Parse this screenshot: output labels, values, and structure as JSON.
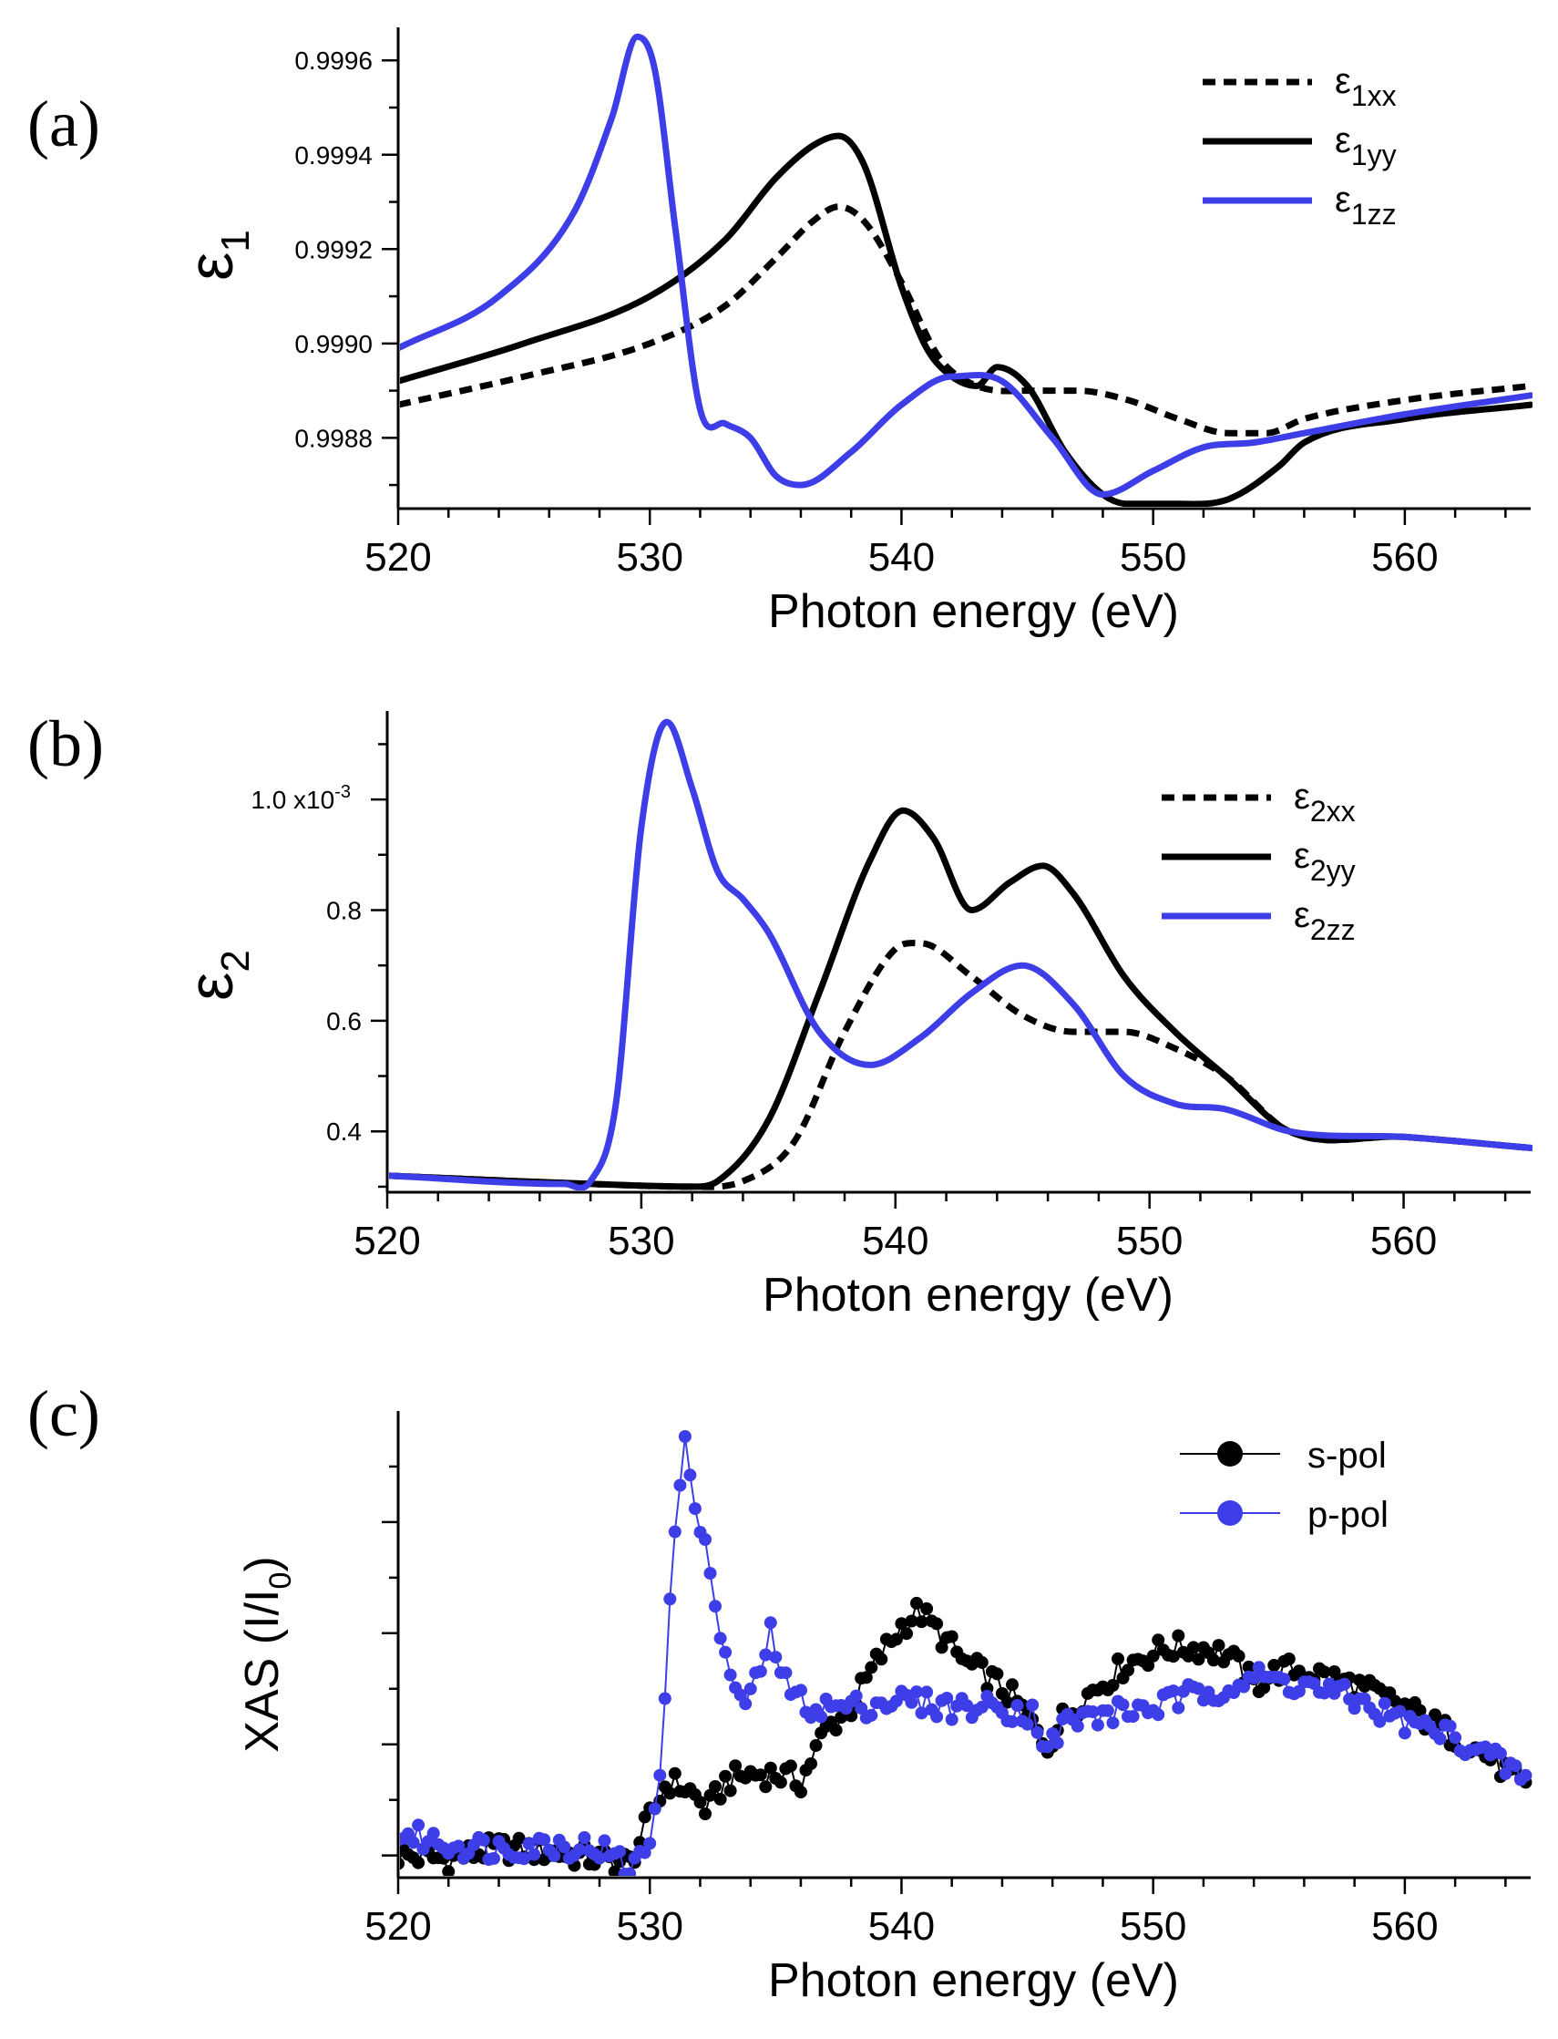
{
  "chart_data": [
    {
      "panel_label": "(a)",
      "type": "line",
      "xlabel": "Photon energy (eV)",
      "ylabel": {
        "base": "ε",
        "sub": "1"
      },
      "xlim": [
        520,
        565
      ],
      "ylim": [
        0.99865,
        0.99967
      ],
      "xticks": [
        520,
        530,
        540,
        550,
        560
      ],
      "xtick_labels": [
        "520",
        "530",
        "540",
        "550",
        "560"
      ],
      "yticks": [
        0.9988,
        0.999,
        0.9992,
        0.9994,
        0.9996
      ],
      "ytick_labels": [
        "0.9988",
        "0.9990",
        "0.9992",
        "0.9994",
        "0.9996"
      ],
      "legend_position": "top-right",
      "series": [
        {
          "name": "ε1xx",
          "label_base": "ε",
          "label_sub": "1xx",
          "color": "#000000",
          "dash": "dotted",
          "x": [
            520,
            525,
            530,
            533,
            535,
            536.5,
            537.5,
            538.5,
            540,
            541.5,
            543,
            545,
            547,
            549,
            551,
            553,
            554.5,
            556,
            560,
            565
          ],
          "y": [
            0.99887,
            0.99893,
            0.999,
            0.99908,
            0.99918,
            0.99926,
            0.99929,
            0.99926,
            0.99913,
            0.99897,
            0.99891,
            0.9989,
            0.9989,
            0.99888,
            0.99884,
            0.99881,
            0.99881,
            0.99884,
            0.99888,
            0.99891
          ]
        },
        {
          "name": "ε1yy",
          "label_base": "ε",
          "label_sub": "1yy",
          "color": "#000000",
          "dash": "solid",
          "x": [
            520,
            525,
            530,
            533,
            535,
            536.5,
            537.5,
            538.5,
            540,
            541,
            542,
            543,
            543.8,
            545,
            546.5,
            548,
            549,
            551,
            553,
            555,
            556,
            560,
            565
          ],
          "y": [
            0.99892,
            0.999,
            0.9991,
            0.99922,
            0.99935,
            0.99942,
            0.99944,
            0.99938,
            0.99912,
            0.99899,
            0.99893,
            0.99891,
            0.99895,
            0.99891,
            0.99877,
            0.99868,
            0.99866,
            0.99866,
            0.99867,
            0.99874,
            0.99879,
            0.99884,
            0.99887
          ]
        },
        {
          "name": "ε1zz",
          "label_base": "ε",
          "label_sub": "1zz",
          "color": "#3e3ee8",
          "dash": "solid",
          "x": [
            520,
            524,
            527,
            528.5,
            529.5,
            530.2,
            531,
            532,
            533,
            534,
            535,
            536,
            538,
            540,
            542,
            544,
            546,
            548,
            550,
            552,
            554,
            556,
            560,
            565
          ],
          "y": [
            0.99899,
            0.9991,
            0.99928,
            0.99948,
            0.99965,
            0.99958,
            0.99925,
            0.99886,
            0.99883,
            0.9988,
            0.99872,
            0.9987,
            0.99877,
            0.99887,
            0.99893,
            0.99892,
            0.9988,
            0.99868,
            0.99873,
            0.99878,
            0.99879,
            0.99881,
            0.99885,
            0.99889
          ]
        }
      ]
    },
    {
      "panel_label": "(b)",
      "type": "line",
      "xlabel": "Photon energy (eV)",
      "ylabel": {
        "base": "ε",
        "sub": "2"
      },
      "xlim": [
        520,
        565
      ],
      "ylim": [
        0.00029,
        0.00116
      ],
      "xticks": [
        520,
        530,
        540,
        550,
        560
      ],
      "xtick_labels": [
        "520",
        "530",
        "540",
        "550",
        "560"
      ],
      "yticks": [
        0.0004,
        0.0006,
        0.0008,
        0.001
      ],
      "ytick_labels": [
        "0.4",
        "0.6",
        "0.8",
        "1.0 x10"
      ],
      "ytick_exponent": "-3",
      "legend_position": "top-right",
      "series": [
        {
          "name": "ε2xx",
          "label_base": "ε",
          "label_sub": "2xx",
          "color": "#000000",
          "dash": "dotted",
          "x": [
            520,
            528,
            532,
            534,
            536,
            538,
            540,
            541,
            543,
            545,
            547,
            549,
            551,
            553,
            555.5,
            560,
            565
          ],
          "y": [
            0.00032,
            0.000305,
            0.0003,
            0.00031,
            0.00038,
            0.00058,
            0.00073,
            0.00074,
            0.00068,
            0.00061,
            0.00058,
            0.00058,
            0.00055,
            0.0005,
            0.0004,
            0.00039,
            0.00037
          ]
        },
        {
          "name": "ε2yy",
          "label_base": "ε",
          "label_sub": "2yy",
          "color": "#000000",
          "dash": "solid",
          "x": [
            520,
            528,
            532,
            533,
            535,
            537,
            539,
            540.3,
            541.5,
            543,
            544.5,
            545.8,
            547,
            549,
            551,
            553,
            555.5,
            560,
            565
          ],
          "y": [
            0.00032,
            0.000305,
            0.0003,
            0.00031,
            0.00042,
            0.00065,
            0.00089,
            0.00098,
            0.00093,
            0.0008,
            0.00085,
            0.00088,
            0.00083,
            0.00068,
            0.00058,
            0.0005,
            0.0004,
            0.00039,
            0.00037
          ]
        },
        {
          "name": "ε2zz",
          "label_base": "ε",
          "label_sub": "2zz",
          "color": "#3e3ee8",
          "dash": "solid",
          "x": [
            520,
            527,
            528,
            529,
            530,
            531,
            532,
            533,
            534,
            535,
            537,
            539,
            541,
            543,
            545,
            547,
            549,
            551,
            553,
            555.5,
            560,
            565
          ],
          "y": [
            0.00032,
            0.000305,
            0.00031,
            0.00045,
            0.00095,
            0.00114,
            0.00102,
            0.00087,
            0.00082,
            0.00076,
            0.00058,
            0.00052,
            0.00057,
            0.00065,
            0.0007,
            0.00063,
            0.0005,
            0.00045,
            0.00044,
            0.0004,
            0.00039,
            0.00037
          ]
        }
      ]
    },
    {
      "panel_label": "(c)",
      "type": "scatter",
      "xlabel": "Photon energy (eV)",
      "ylabel": {
        "text": "XAS (I/I",
        "sub": "0",
        "close": ")"
      },
      "xlim": [
        520,
        565
      ],
      "ylim": [
        -0.03,
        0.6
      ],
      "xticks": [
        520,
        530,
        540,
        550,
        560
      ],
      "xtick_labels": [
        "520",
        "530",
        "540",
        "550",
        "560"
      ],
      "yticks": [
        0,
        0.15,
        0.3,
        0.45
      ],
      "ytick_labels": [
        "",
        "",
        "",
        ""
      ],
      "legend_position": "top-right",
      "series": [
        {
          "name": "s-pol",
          "color": "#000000",
          "x": [
            520,
            522,
            524,
            526,
            528,
            529.2,
            530,
            530.7,
            531.5,
            532.3,
            533,
            534,
            535,
            536,
            537,
            538,
            539,
            540,
            540.7,
            541.5,
            542.5,
            543.5,
            544.5,
            545.3,
            545.8,
            546.5,
            547.5,
            549,
            550.5,
            552,
            553,
            554,
            555,
            556,
            558,
            560,
            562,
            563.5,
            565
          ],
          "y": [
            0,
            -0.005,
            0.01,
            0.005,
            -0.005,
            -0.01,
            0.05,
            0.1,
            0.09,
            0.06,
            0.1,
            0.11,
            0.11,
            0.1,
            0.17,
            0.2,
            0.26,
            0.31,
            0.33,
            0.3,
            0.26,
            0.24,
            0.21,
            0.17,
            0.15,
            0.19,
            0.22,
            0.26,
            0.28,
            0.28,
            0.27,
            0.23,
            0.25,
            0.25,
            0.23,
            0.2,
            0.16,
            0.13,
            0.08
          ]
        },
        {
          "name": "p-pol",
          "color": "#3e3ee8",
          "x": [
            520,
            522,
            524,
            526,
            528,
            529.3,
            530,
            530.5,
            531,
            531.4,
            532,
            532.8,
            533.5,
            534.2,
            534.8,
            535.5,
            536.5,
            538,
            540,
            542,
            544,
            545.3,
            545.8,
            546.5,
            548,
            550,
            552,
            554,
            556,
            558,
            560,
            562,
            564,
            565
          ],
          "y": [
            0.03,
            0.015,
            0.01,
            0.015,
            0.01,
            -0.02,
            0.02,
            0.15,
            0.45,
            0.55,
            0.45,
            0.3,
            0.2,
            0.23,
            0.3,
            0.22,
            0.2,
            0.2,
            0.21,
            0.2,
            0.2,
            0.19,
            0.14,
            0.18,
            0.19,
            0.2,
            0.22,
            0.24,
            0.23,
            0.21,
            0.18,
            0.16,
            0.12,
            0.1
          ]
        }
      ]
    }
  ]
}
